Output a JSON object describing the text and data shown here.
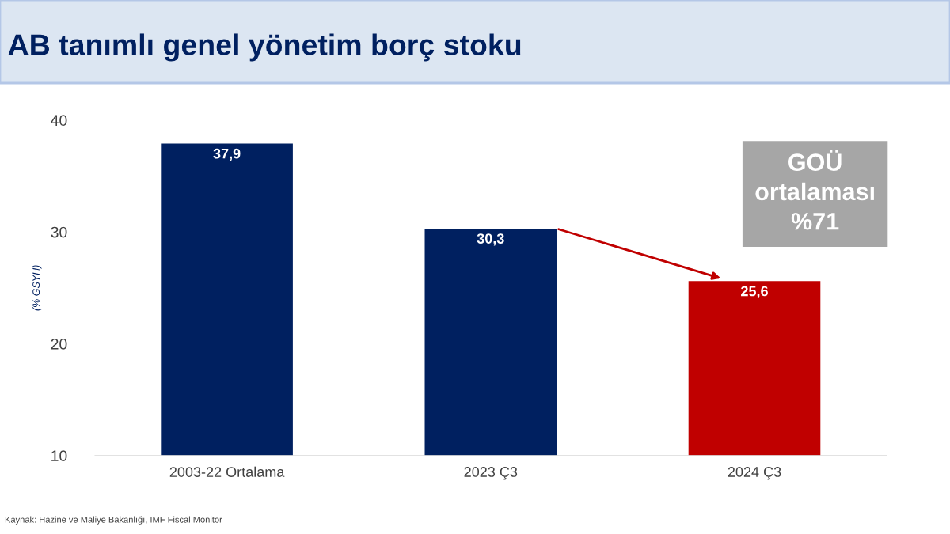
{
  "chart_data": {
    "type": "bar",
    "title": "AB tanımlı genel yönetim borç stoku",
    "ylabel": "(% GSYH)",
    "categories": [
      "2003-22 Ortalama",
      "2023 Ç3",
      "2024 Ç3"
    ],
    "values": [
      37.9,
      30.3,
      25.6
    ],
    "colors": [
      "#002060",
      "#002060",
      "#c00000"
    ],
    "value_labels": [
      "37,9",
      "30,3",
      "25,6"
    ],
    "ylim": [
      10,
      40
    ],
    "yticks": [
      10,
      20,
      30,
      40
    ],
    "grid": false,
    "legend": false,
    "annotations": [
      "GOÜ\nortalaması\n%71",
      "Kaynak: Hazine ve Maliye Bakanlığı, IMF Fiscal Monitor"
    ]
  }
}
